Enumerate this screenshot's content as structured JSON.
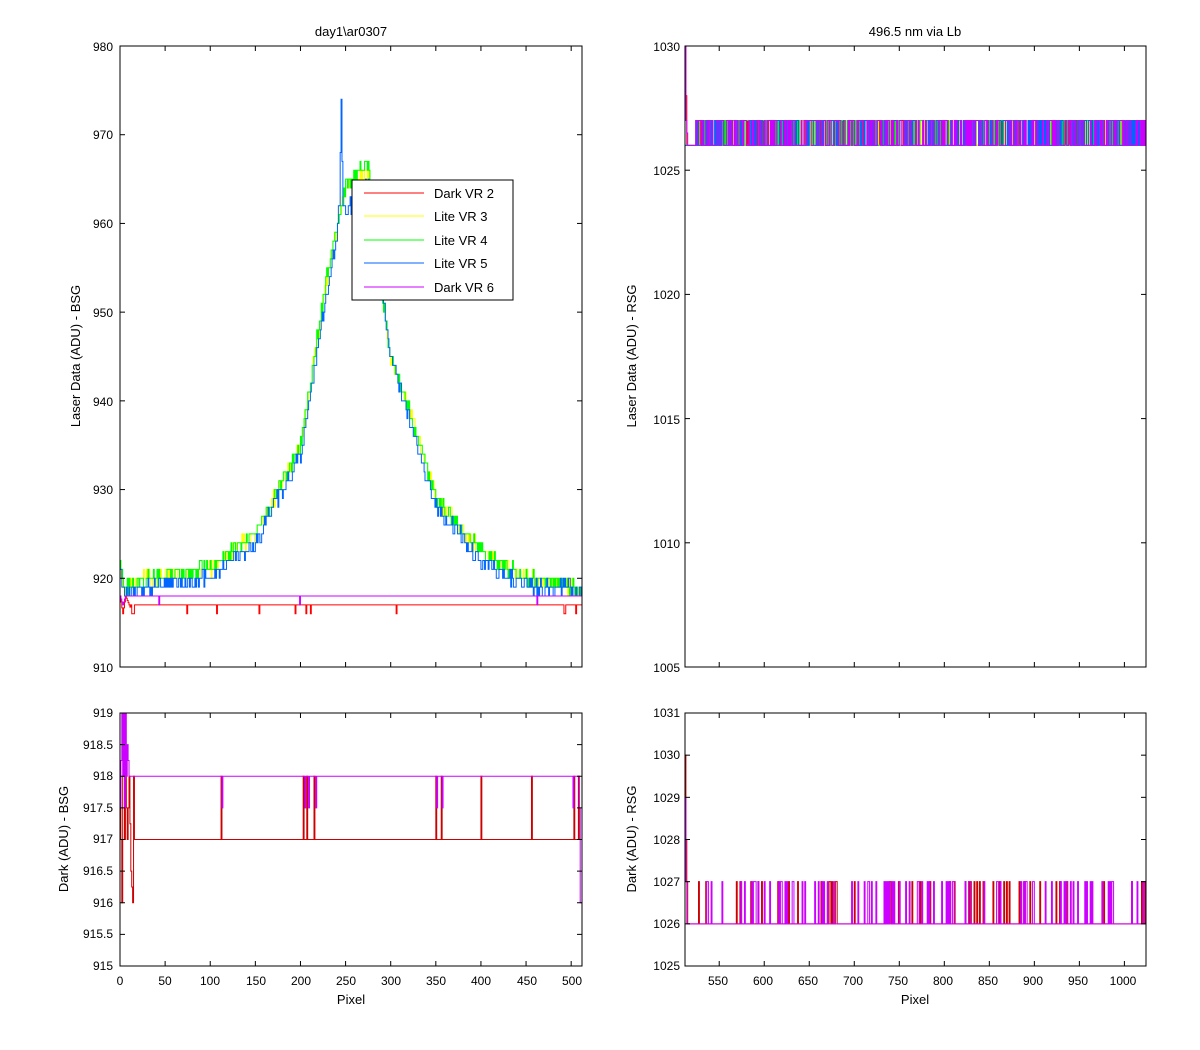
{
  "figure": {
    "background": "#ffffff"
  },
  "legend_title": "",
  "chart_data": [
    {
      "id": "tl",
      "type": "line",
      "title": "day1\\ar0307",
      "xlabel": "",
      "ylabel": "Laser Data (ADU) - BSG",
      "xlim": [
        0,
        512
      ],
      "ylim": [
        910,
        980
      ],
      "xticks": [
        0,
        50,
        100,
        150,
        200,
        250,
        300,
        350,
        400,
        450,
        500
      ],
      "xtick_labels": [],
      "yticks": [
        910,
        920,
        930,
        940,
        950,
        960,
        970,
        980
      ],
      "ytick_labels": [
        "910",
        "920",
        "930",
        "940",
        "950",
        "960",
        "970",
        "980"
      ],
      "legend": {
        "placement": "upper-middle",
        "entries": [
          "Dark VR 2",
          "Lite VR 3",
          "Lite VR 4",
          "Lite VR 5",
          "Dark VR 6"
        ]
      },
      "series": [
        {
          "name": "Dark VR 2",
          "color": "#ff0000",
          "noise": "dark_bsg",
          "x": [
            0,
            3,
            6,
            10,
            14,
            18,
            25,
            512
          ],
          "y": [
            918,
            916,
            918,
            917,
            916,
            917,
            917,
            917
          ]
        },
        {
          "name": "Lite VR 3",
          "color": "#ffff00",
          "noise": "lite_bsg",
          "x": [
            0,
            5,
            30,
            100,
            150,
            200,
            230,
            245,
            250,
            275,
            290,
            300,
            320,
            350,
            400,
            450,
            500,
            512
          ],
          "y": [
            921,
            919,
            920,
            921,
            925,
            935,
            954,
            962,
            964,
            966,
            952,
            945,
            939,
            929,
            923,
            920,
            919,
            918
          ]
        },
        {
          "name": "Lite VR 4",
          "color": "#00ff00",
          "noise": "lite_bsg",
          "x": [
            0,
            5,
            30,
            100,
            150,
            200,
            230,
            245,
            250,
            275,
            290,
            300,
            320,
            350,
            400,
            450,
            500,
            512
          ],
          "y": [
            922,
            919,
            920,
            921,
            925,
            935,
            955,
            962,
            964,
            967,
            952,
            945,
            939,
            929,
            923,
            920,
            919,
            918
          ]
        },
        {
          "name": "Lite VR 5",
          "color": "#0066ff",
          "noise": "lite_bsg",
          "x": [
            0,
            5,
            30,
            100,
            150,
            200,
            230,
            238,
            243,
            245,
            247,
            250,
            275,
            290,
            300,
            320,
            350,
            400,
            450,
            500,
            512
          ],
          "y": [
            921,
            918,
            919,
            920,
            924,
            934,
            953,
            957,
            962,
            974,
            962,
            961,
            965,
            952,
            945,
            938,
            928,
            922,
            919,
            919,
            918
          ]
        },
        {
          "name": "Dark VR 6",
          "color": "#cc00ff",
          "noise": "dark_bsg",
          "x": [
            0,
            3,
            6,
            10,
            512
          ],
          "y": [
            918,
            917,
            918,
            918,
            918
          ]
        }
      ]
    },
    {
      "id": "tr",
      "type": "line",
      "title": "496.5 nm via Lb",
      "xlabel": "",
      "ylabel": "Laser Data (ADU) - RSG",
      "xlim": [
        512,
        1024
      ],
      "ylim": [
        1005,
        1030
      ],
      "xticks": [
        550,
        600,
        650,
        700,
        750,
        800,
        850,
        900,
        950,
        1000
      ],
      "xtick_labels": [],
      "yticks": [
        1005,
        1010,
        1015,
        1020,
        1025,
        1030
      ],
      "ytick_labels": [
        "1005",
        "1010",
        "1015",
        "1020",
        "1025",
        "1030"
      ],
      "series": [
        {
          "name": "Dark VR 2",
          "color": "#ff0000",
          "noise": "band_rsg",
          "x": [
            512,
            513,
            514,
            516,
            1024
          ],
          "y": [
            1030,
            1028,
            1026,
            1026,
            1026
          ]
        },
        {
          "name": "Lite VR 3",
          "color": "#ffff00",
          "noise": "band_rsg",
          "x": [
            512,
            549,
            550,
            551,
            1024
          ],
          "y": [
            1026,
            1026,
            1025,
            1026,
            1026
          ]
        },
        {
          "name": "Lite VR 4",
          "color": "#00ff00",
          "noise": "band_rsg",
          "x": [
            512,
            1024
          ],
          "y": [
            1026,
            1026
          ]
        },
        {
          "name": "Lite VR 5",
          "color": "#0066ff",
          "noise": "band_rsg",
          "x": [
            512,
            1024
          ],
          "y": [
            1026,
            1026
          ]
        },
        {
          "name": "Dark VR 6",
          "color": "#cc00ff",
          "noise": "band_rsg",
          "x": [
            512,
            513,
            515,
            1024
          ],
          "y": [
            1030,
            1027,
            1026,
            1026
          ]
        }
      ]
    },
    {
      "id": "bl",
      "type": "line",
      "title": "",
      "xlabel": "Pixel",
      "ylabel": "Dark (ADU) - BSG",
      "xlim": [
        0,
        512
      ],
      "ylim": [
        915,
        919
      ],
      "xticks": [
        0,
        50,
        100,
        150,
        200,
        250,
        300,
        350,
        400,
        450,
        500
      ],
      "xtick_labels": [
        "0",
        "50",
        "100",
        "150",
        "200",
        "250",
        "300",
        "350",
        "400",
        "450",
        "500"
      ],
      "yticks": [
        915,
        915.5,
        916,
        916.5,
        917,
        917.5,
        918,
        918.5,
        919
      ],
      "ytick_labels": [
        "915",
        "915.5",
        "916",
        "916.5",
        "917",
        "917.5",
        "918",
        "918.5",
        "919"
      ],
      "series": [
        {
          "name": "Dark VR 2",
          "color": "#cc0000",
          "noise": "dark_detail_2",
          "x": [
            0,
            2,
            3,
            4,
            5,
            6,
            8,
            10,
            12,
            14,
            15,
            16,
            25,
            512
          ],
          "y": [
            918,
            916,
            918,
            919,
            917,
            918,
            917,
            918,
            916.5,
            916,
            918,
            917,
            917,
            917
          ]
        },
        {
          "name": "Dark VR 6",
          "color": "#cc00ff",
          "noise": "dark_detail_6",
          "x": [
            0,
            2,
            3,
            4,
            5,
            6,
            7,
            8,
            10,
            512
          ],
          "y": [
            917.5,
            919,
            918,
            919,
            917.5,
            919,
            918,
            918.5,
            918,
            918
          ]
        }
      ]
    },
    {
      "id": "br",
      "type": "line",
      "title": "",
      "xlabel": "Pixel",
      "ylabel": "Dark (ADU) - RSG",
      "xlim": [
        512,
        1024
      ],
      "ylim": [
        1025,
        1031
      ],
      "xticks": [
        550,
        600,
        650,
        700,
        750,
        800,
        850,
        900,
        950,
        1000
      ],
      "xtick_labels": [
        "550",
        "600",
        "650",
        "700",
        "750",
        "800",
        "850",
        "900",
        "950",
        "1000"
      ],
      "yticks": [
        1025,
        1026,
        1027,
        1028,
        1029,
        1030,
        1031
      ],
      "ytick_labels": [
        "1025",
        "1026",
        "1027",
        "1028",
        "1029",
        "1030",
        "1031"
      ],
      "series": [
        {
          "name": "Dark VR 2",
          "color": "#cc0000",
          "noise": "dark_detail_r2",
          "x": [
            512,
            513,
            514,
            515,
            517,
            1024
          ],
          "y": [
            1030,
            1028,
            1027,
            1026,
            1026,
            1026
          ]
        },
        {
          "name": "Dark VR 6",
          "color": "#cc00ff",
          "noise": "dark_detail_r6",
          "x": [
            512,
            513,
            514,
            516,
            1024
          ],
          "y": [
            1029,
            1027,
            1026,
            1026,
            1026
          ]
        }
      ]
    }
  ]
}
